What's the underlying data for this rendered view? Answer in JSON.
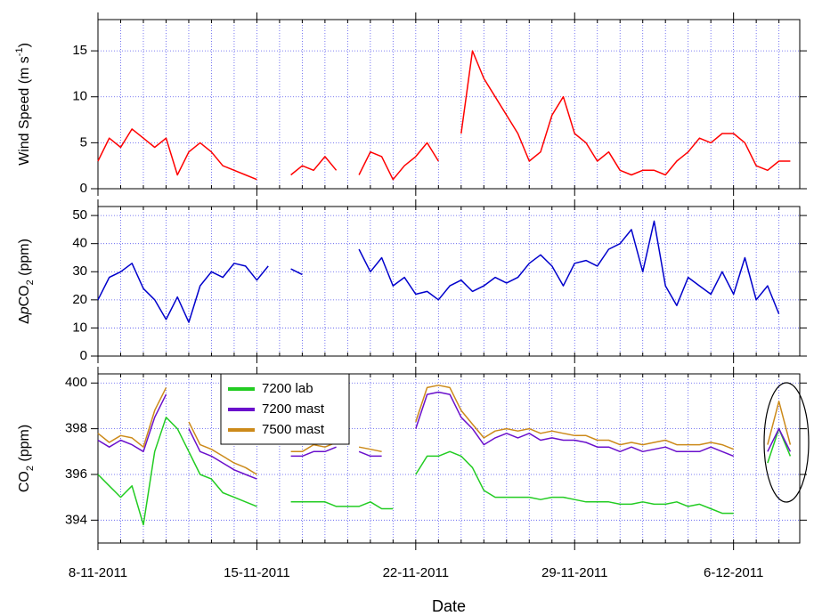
{
  "chart_data": [
    {
      "type": "line",
      "y_label": [
        "Wind Speed (m s",
        "-1",
        ")"
      ],
      "ylim": [
        0,
        18.4
      ],
      "yticks": [
        0,
        5,
        10,
        15
      ],
      "grid": true,
      "series": [
        {
          "name": "Wind Speed",
          "color": "#ff0000",
          "values": [
            3,
            5.5,
            4.5,
            6.5,
            5.5,
            4.5,
            5.5,
            1.5,
            4,
            5,
            4,
            2.5,
            2,
            1.5,
            1,
            null,
            null,
            1.5,
            2.5,
            2,
            3.5,
            2,
            null,
            1.5,
            4,
            3.5,
            1,
            2.5,
            3.5,
            5,
            3,
            null,
            6,
            15,
            12,
            10,
            8,
            6,
            3,
            4,
            8,
            10,
            6,
            5,
            3,
            4,
            2,
            1.5,
            2,
            2,
            1.5,
            3,
            4,
            5.5,
            5,
            6,
            6,
            5,
            2.5,
            2,
            3,
            3
          ]
        }
      ]
    },
    {
      "type": "line",
      "y_label": [
        "Δ",
        "p",
        "CO",
        "2",
        " (ppm)"
      ],
      "ylim": [
        0,
        53.2
      ],
      "yticks": [
        0,
        10,
        20,
        30,
        40,
        50
      ],
      "grid": true,
      "series": [
        {
          "name": "ΔpCO2",
          "color": "#0000cc",
          "values": [
            20,
            28,
            30,
            33,
            24,
            20,
            13,
            21,
            12,
            25,
            30,
            28,
            33,
            32,
            27,
            32,
            null,
            31,
            29,
            null,
            null,
            null,
            null,
            38,
            30,
            35,
            25,
            28,
            22,
            23,
            20,
            25,
            27,
            23,
            25,
            28,
            26,
            28,
            33,
            36,
            32,
            25,
            33,
            34,
            32,
            38,
            40,
            45,
            30,
            48,
            25,
            18,
            28,
            25,
            22,
            30,
            22,
            35,
            20,
            25,
            15,
            null
          ]
        }
      ]
    },
    {
      "type": "line",
      "y_label": [
        "CO",
        "2",
        " (ppm)"
      ],
      "x_label": "Date",
      "ylim": [
        393,
        400.4
      ],
      "yticks": [
        394,
        396,
        398,
        400
      ],
      "grid": true,
      "legend": "top-left",
      "xlim": [
        "2011-11-08T00:00",
        "2011-12-08T22:00"
      ],
      "xticks": [
        {
          "value": "2011-11-08T00:00",
          "label": "8-11-2011"
        },
        {
          "value": "2011-11-15T00:00",
          "label": "15-11-2011"
        },
        {
          "value": "2011-11-22T00:00",
          "label": "22-11-2011"
        },
        {
          "value": "2011-11-29T00:00",
          "label": "29-11-2011"
        },
        {
          "value": "2011-12-06T00:00",
          "label": "6-12-2011"
        }
      ],
      "xticks_minor": [
        "2011-11-08T00:00",
        "2011-11-09T00:00",
        "2011-11-10T00:00",
        "2011-11-11T00:00",
        "2011-11-12T00:00",
        "2011-11-13T00:00",
        "2011-11-14T00:00",
        "2011-11-15T00:00",
        "2011-11-16T00:00",
        "2011-11-17T00:00",
        "2011-11-18T00:00",
        "2011-11-19T00:00",
        "2011-11-20T00:00",
        "2011-11-21T00:00",
        "2011-11-22T00:00",
        "2011-11-23T00:00",
        "2011-11-24T00:00",
        "2011-11-25T00:00",
        "2011-11-26T00:00",
        "2011-11-27T00:00",
        "2011-11-28T00:00",
        "2011-11-29T00:00",
        "2011-11-30T00:00",
        "2011-12-01T00:00",
        "2011-12-02T00:00",
        "2011-12-03T00:00",
        "2011-12-04T00:00",
        "2011-12-05T00:00",
        "2011-12-06T00:00",
        "2011-12-07T00:00",
        "2011-12-08T00:00"
      ],
      "x": [
        "2011-11-08T00:00",
        "2011-11-08T12:00",
        "2011-11-09T00:00",
        "2011-11-09T12:00",
        "2011-11-10T00:00",
        "2011-11-10T12:00",
        "2011-11-11T00:00",
        "2011-11-11T12:00",
        "2011-11-12T00:00",
        "2011-11-12T12:00",
        "2011-11-13T00:00",
        "2011-11-13T12:00",
        "2011-11-14T00:00",
        "2011-11-14T12:00",
        "2011-11-15T00:00",
        "2011-11-15T12:00",
        "2011-11-16T00:00",
        "2011-11-16T12:00",
        "2011-11-17T00:00",
        "2011-11-17T12:00",
        "2011-11-18T00:00",
        "2011-11-18T12:00",
        "2011-11-19T00:00",
        "2011-11-19T12:00",
        "2011-11-20T00:00",
        "2011-11-20T12:00",
        "2011-11-21T00:00",
        "2011-11-21T12:00",
        "2011-11-22T00:00",
        "2011-11-22T12:00",
        "2011-11-23T00:00",
        "2011-11-23T12:00",
        "2011-11-24T00:00",
        "2011-11-24T12:00",
        "2011-11-25T00:00",
        "2011-11-25T12:00",
        "2011-11-26T00:00",
        "2011-11-26T12:00",
        "2011-11-27T00:00",
        "2011-11-27T12:00",
        "2011-11-28T00:00",
        "2011-11-28T12:00",
        "2011-11-29T00:00",
        "2011-11-29T12:00",
        "2011-11-30T00:00",
        "2011-11-30T12:00",
        "2011-12-01T00:00",
        "2011-12-01T12:00",
        "2011-12-02T00:00",
        "2011-12-02T12:00",
        "2011-12-03T00:00",
        "2011-12-03T12:00",
        "2011-12-04T00:00",
        "2011-12-04T12:00",
        "2011-12-05T00:00",
        "2011-12-05T12:00",
        "2011-12-06T00:00",
        "2011-12-06T12:00",
        "2011-12-07T00:00",
        "2011-12-07T12:00",
        "2011-12-08T00:00",
        "2011-12-08T12:00"
      ],
      "series": [
        {
          "name": "7200 lab",
          "color": "#22cc22",
          "values": [
            396,
            395.5,
            395,
            395.5,
            393.8,
            397,
            398.5,
            398,
            397,
            396,
            395.8,
            395.2,
            395,
            394.8,
            394.6,
            null,
            null,
            394.8,
            394.8,
            394.8,
            394.8,
            394.6,
            394.6,
            394.6,
            394.8,
            394.5,
            394.5,
            null,
            396,
            396.8,
            396.8,
            397,
            396.8,
            396.3,
            395.3,
            395,
            395,
            395,
            395,
            394.9,
            395,
            395,
            394.9,
            394.8,
            394.8,
            394.8,
            394.7,
            394.7,
            394.8,
            394.7,
            394.7,
            394.8,
            394.6,
            394.7,
            394.5,
            394.3,
            394.3,
            null,
            null,
            396.5,
            398,
            396.8
          ]
        },
        {
          "name": "7200 mast",
          "color": "#6a10cc",
          "values": [
            397.5,
            397.2,
            397.5,
            397.3,
            397,
            398.5,
            399.5,
            null,
            398,
            397,
            396.8,
            396.5,
            396.2,
            396,
            395.8,
            null,
            null,
            396.8,
            396.8,
            397,
            397,
            397.2,
            null,
            397,
            396.8,
            396.8,
            null,
            null,
            398,
            399.5,
            399.6,
            399.5,
            398.5,
            398,
            397.3,
            397.6,
            397.8,
            397.6,
            397.8,
            397.5,
            397.6,
            397.5,
            397.5,
            397.4,
            397.2,
            397.2,
            397,
            397.2,
            397,
            397.1,
            397.2,
            397,
            397,
            397,
            397.2,
            397,
            396.8,
            null,
            null,
            397,
            398,
            397
          ]
        },
        {
          "name": "7500 mast",
          "color": "#cc8a1a",
          "values": [
            397.8,
            397.4,
            397.7,
            397.6,
            397.2,
            398.8,
            399.8,
            null,
            398.3,
            397.3,
            397.1,
            396.8,
            396.5,
            396.3,
            396,
            null,
            null,
            397,
            397,
            397.3,
            397.2,
            397.4,
            null,
            397.2,
            397.1,
            397,
            null,
            null,
            398.3,
            399.8,
            399.9,
            399.8,
            398.8,
            398.2,
            397.6,
            397.9,
            398,
            397.9,
            398,
            397.8,
            397.9,
            397.8,
            397.7,
            397.7,
            397.5,
            397.5,
            397.3,
            397.4,
            397.3,
            397.4,
            397.5,
            397.3,
            397.3,
            397.3,
            397.4,
            397.3,
            397.1,
            null,
            null,
            397.3,
            399.2,
            397.3
          ]
        }
      ]
    }
  ]
}
